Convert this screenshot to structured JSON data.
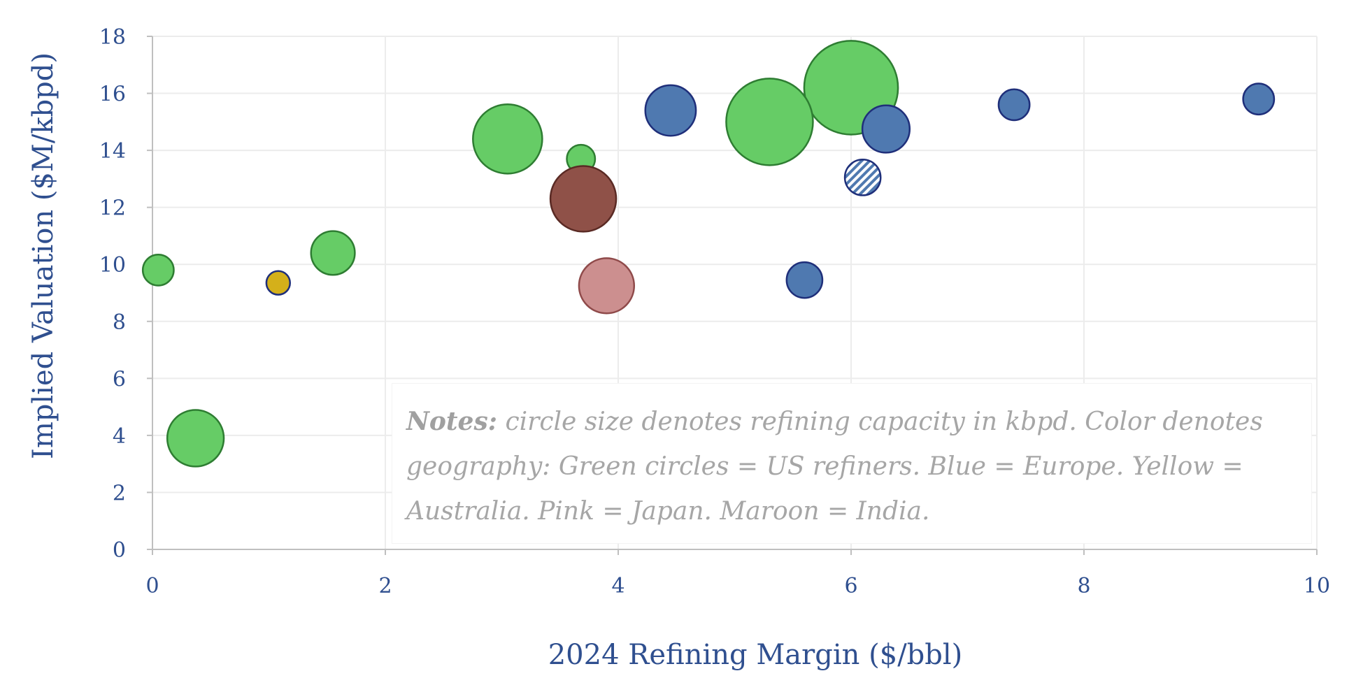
{
  "chart_data": {
    "type": "bubble",
    "xlabel": "2024 Refining Margin ($/bbl)",
    "ylabel": "Implied Valuation ($M/kbpd)",
    "xlim": [
      0,
      10
    ],
    "ylim": [
      0,
      18
    ],
    "xticks": [
      "0",
      "2",
      "4",
      "6",
      "8",
      "10"
    ],
    "yticks": [
      "0",
      "2",
      "4",
      "6",
      "8",
      "10",
      "12",
      "14",
      "16",
      "18"
    ],
    "grid": true,
    "size_meaning": "circle size denotes refining capacity in kbpd",
    "colors": {
      "US": "#66cc66",
      "US_edge": "#2e7d32",
      "Europe": "#4f79b0",
      "Europe_edge": "#1f2f7a",
      "Australia": "#d4b01a",
      "Japan": "#cc8f8f",
      "Japan_edge": "#8f4a4a",
      "India": "#8f5148",
      "India_edge": "#5a2a24"
    },
    "points": [
      {
        "x": 0.05,
        "y": 9.8,
        "size": 60,
        "group": "US"
      },
      {
        "x": 0.37,
        "y": 3.9,
        "size": 200,
        "group": "US"
      },
      {
        "x": 1.08,
        "y": 9.35,
        "size": 35,
        "group": "Australia"
      },
      {
        "x": 1.55,
        "y": 10.4,
        "size": 120,
        "group": "US"
      },
      {
        "x": 3.05,
        "y": 14.4,
        "size": 300,
        "group": "US"
      },
      {
        "x": 3.68,
        "y": 13.7,
        "size": 50,
        "group": "US"
      },
      {
        "x": 3.7,
        "y": 12.3,
        "size": 270,
        "group": "India"
      },
      {
        "x": 3.9,
        "y": 9.25,
        "size": 190,
        "group": "Japan"
      },
      {
        "x": 4.45,
        "y": 15.4,
        "size": 160,
        "group": "Europe"
      },
      {
        "x": 5.6,
        "y": 9.45,
        "size": 80,
        "group": "Europe"
      },
      {
        "x": 6.0,
        "y": 16.2,
        "size": 550,
        "group": "US"
      },
      {
        "x": 5.3,
        "y": 15.0,
        "size": 470,
        "group": "US"
      },
      {
        "x": 6.1,
        "y": 13.05,
        "size": 80,
        "group": "Europe",
        "pattern": "hatched"
      },
      {
        "x": 6.3,
        "y": 14.75,
        "size": 140,
        "group": "Europe"
      },
      {
        "x": 7.4,
        "y": 15.6,
        "size": 60,
        "group": "Europe"
      },
      {
        "x": 9.5,
        "y": 15.8,
        "size": 60,
        "group": "Europe"
      }
    ],
    "notes": {
      "label": "Notes:",
      "text": " circle size denotes refining capacity in kbpd. Color denotes geography: Green circles = US refiners. Blue = Europe. Yellow = Australia. Pink = Japan. Maroon = India."
    }
  }
}
